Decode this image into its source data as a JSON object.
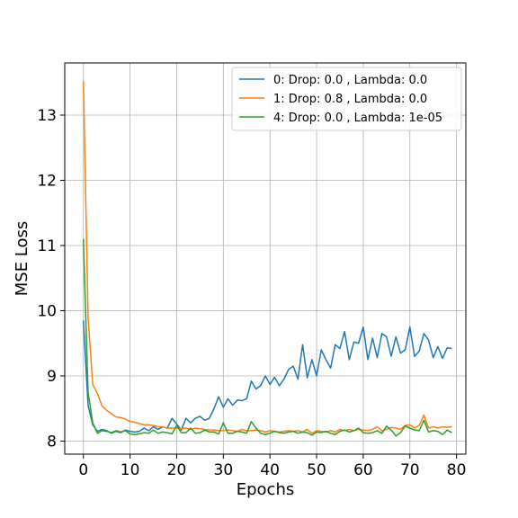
{
  "chart_data": {
    "type": "line",
    "title": "",
    "xlabel": "Epochs",
    "ylabel": "MSE Loss",
    "xlim": [
      -4,
      82
    ],
    "ylim": [
      7.8,
      13.8
    ],
    "xticks": [
      0,
      10,
      20,
      30,
      40,
      50,
      60,
      70,
      80
    ],
    "yticks": [
      8,
      9,
      10,
      11,
      12,
      13
    ],
    "grid": true,
    "legend_position": "top-right",
    "series": [
      {
        "name": "0: Drop: 0.0 , Lambda: 0.0",
        "color": "#1f77b4",
        "x": [
          0,
          1,
          2,
          3,
          4,
          5,
          6,
          7,
          8,
          9,
          10,
          11,
          12,
          13,
          14,
          15,
          16,
          17,
          18,
          19,
          20,
          21,
          22,
          23,
          24,
          25,
          26,
          27,
          28,
          29,
          30,
          31,
          32,
          33,
          34,
          35,
          36,
          37,
          38,
          39,
          40,
          41,
          42,
          43,
          44,
          45,
          46,
          47,
          48,
          49,
          50,
          51,
          52,
          53,
          54,
          55,
          56,
          57,
          58,
          59,
          60,
          61,
          62,
          63,
          64,
          65,
          66,
          67,
          68,
          69,
          70,
          71,
          72,
          73,
          74,
          75,
          76,
          77,
          78,
          79
        ],
        "values": [
          9.85,
          8.55,
          8.25,
          8.15,
          8.18,
          8.16,
          8.12,
          8.15,
          8.13,
          8.17,
          8.15,
          8.14,
          8.15,
          8.2,
          8.16,
          8.22,
          8.18,
          8.22,
          8.2,
          8.35,
          8.26,
          8.17,
          8.35,
          8.28,
          8.35,
          8.38,
          8.32,
          8.35,
          8.5,
          8.68,
          8.52,
          8.65,
          8.55,
          8.63,
          8.62,
          8.65,
          8.92,
          8.8,
          8.85,
          9.0,
          8.87,
          8.98,
          8.85,
          8.95,
          9.1,
          9.15,
          8.95,
          9.48,
          8.97,
          9.25,
          9.0,
          9.4,
          9.25,
          9.12,
          9.48,
          9.42,
          9.68,
          9.25,
          9.52,
          9.5,
          9.75,
          9.25,
          9.58,
          9.28,
          9.65,
          9.6,
          9.3,
          9.6,
          9.35,
          9.4,
          9.75,
          9.3,
          9.38,
          9.65,
          9.55,
          9.28,
          9.45,
          9.27,
          9.43,
          9.42
        ]
      },
      {
        "name": "1: Drop: 0.8 , Lambda: 0.0",
        "color": "#ff7f0e",
        "x": [
          0,
          1,
          2,
          3,
          4,
          5,
          6,
          7,
          8,
          9,
          10,
          11,
          12,
          13,
          14,
          15,
          16,
          17,
          18,
          19,
          20,
          21,
          22,
          23,
          24,
          25,
          26,
          27,
          28,
          29,
          30,
          31,
          32,
          33,
          34,
          35,
          36,
          37,
          38,
          39,
          40,
          41,
          42,
          43,
          44,
          45,
          46,
          47,
          48,
          49,
          50,
          51,
          52,
          53,
          54,
          55,
          56,
          57,
          58,
          59,
          60,
          61,
          62,
          63,
          64,
          65,
          66,
          67,
          68,
          69,
          70,
          71,
          72,
          73,
          74,
          75,
          76,
          77,
          78,
          79
        ],
        "values": [
          13.52,
          9.9,
          8.87,
          8.73,
          8.54,
          8.47,
          8.42,
          8.37,
          8.36,
          8.34,
          8.3,
          8.29,
          8.27,
          8.25,
          8.25,
          8.24,
          8.22,
          8.22,
          8.2,
          8.2,
          8.2,
          8.19,
          8.2,
          8.18,
          8.2,
          8.19,
          8.18,
          8.17,
          8.17,
          8.16,
          8.16,
          8.17,
          8.16,
          8.15,
          8.18,
          8.16,
          8.16,
          8.17,
          8.16,
          8.14,
          8.16,
          8.15,
          8.14,
          8.15,
          8.16,
          8.15,
          8.16,
          8.14,
          8.18,
          8.12,
          8.16,
          8.15,
          8.14,
          8.16,
          8.14,
          8.18,
          8.16,
          8.18,
          8.16,
          8.18,
          8.17,
          8.16,
          8.18,
          8.22,
          8.16,
          8.18,
          8.21,
          8.2,
          8.18,
          8.24,
          8.25,
          8.2,
          8.24,
          8.4,
          8.2,
          8.22,
          8.2,
          8.22,
          8.21,
          8.22
        ]
      },
      {
        "name": "4: Drop: 0.0 , Lambda: 1e-05",
        "color": "#2ca02c",
        "x": [
          0,
          1,
          2,
          3,
          4,
          5,
          6,
          7,
          8,
          9,
          10,
          11,
          12,
          13,
          14,
          15,
          16,
          17,
          18,
          19,
          20,
          21,
          22,
          23,
          24,
          25,
          26,
          27,
          28,
          29,
          30,
          31,
          32,
          33,
          34,
          35,
          36,
          37,
          38,
          39,
          40,
          41,
          42,
          43,
          44,
          45,
          46,
          47,
          48,
          49,
          50,
          51,
          52,
          53,
          54,
          55,
          56,
          57,
          58,
          59,
          60,
          61,
          62,
          63,
          64,
          65,
          66,
          67,
          68,
          69,
          70,
          71,
          72,
          73,
          74,
          75,
          76,
          77,
          78,
          79
        ],
        "values": [
          11.1,
          8.75,
          8.28,
          8.12,
          8.16,
          8.15,
          8.13,
          8.16,
          8.14,
          8.16,
          8.11,
          8.1,
          8.11,
          8.13,
          8.12,
          8.17,
          8.12,
          8.14,
          8.13,
          8.11,
          8.24,
          8.13,
          8.13,
          8.2,
          8.12,
          8.13,
          8.17,
          8.14,
          8.14,
          8.11,
          8.28,
          8.12,
          8.12,
          8.15,
          8.14,
          8.12,
          8.3,
          8.2,
          8.12,
          8.1,
          8.12,
          8.15,
          8.13,
          8.12,
          8.14,
          8.15,
          8.12,
          8.14,
          8.13,
          8.09,
          8.14,
          8.13,
          8.15,
          8.12,
          8.1,
          8.15,
          8.17,
          8.14,
          8.16,
          8.2,
          8.13,
          8.12,
          8.13,
          8.16,
          8.12,
          8.23,
          8.17,
          8.08,
          8.13,
          8.23,
          8.2,
          8.17,
          8.16,
          8.32,
          8.14,
          8.16,
          8.15,
          8.1,
          8.17,
          8.13
        ]
      }
    ]
  }
}
